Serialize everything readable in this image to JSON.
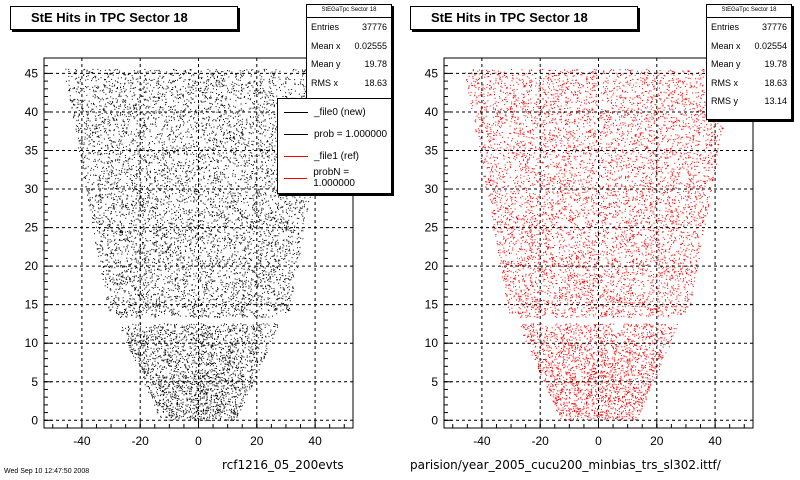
{
  "colors": {
    "new": "#000000",
    "ref": "#ff0000",
    "grid": "#000000"
  },
  "left_panel": {
    "title": "StE Hits in TPC Sector 18",
    "stats": {
      "name": "StEGaTpc Sector 18",
      "rows": [
        {
          "label": "Entries",
          "value": "37776"
        },
        {
          "label": "Mean x",
          "value": "0.02555"
        },
        {
          "label": "Mean y",
          "value": "19.78"
        },
        {
          "label": "RMS x",
          "value": "18.63"
        }
      ]
    },
    "legend": [
      {
        "label": "_file0 (new)",
        "color": "#000000"
      },
      {
        "label": "prob = 1.000000",
        "color": "#000000"
      },
      {
        "label": "_file1 (ref)",
        "color": "#ff0000"
      },
      {
        "label": "probN = 1.000000",
        "color": "#ff0000"
      }
    ],
    "footer": "rcf1216_05_200evts",
    "footer_small": "Wed Sep 10 12:47:50 2008"
  },
  "right_panel": {
    "title": "StE Hits in TPC Sector 18",
    "stats": {
      "name": "StEGaTpc Sector 18",
      "rows": [
        {
          "label": "Entries",
          "value": "37776"
        },
        {
          "label": "Mean x",
          "value": "0.02554"
        },
        {
          "label": "Mean y",
          "value": "19.78"
        },
        {
          "label": "RMS x",
          "value": "18.63"
        },
        {
          "label": "RMS y",
          "value": "13.14"
        }
      ]
    },
    "footer": "parision/year_2005_cucu200_minbias_trs_sl302.ittf/"
  },
  "chart_data": [
    {
      "type": "scatter",
      "title": "StE Hits in TPC Sector 18",
      "series": [
        {
          "name": "_file0 (new)",
          "color": "#000000"
        }
      ],
      "xlim": [
        -53,
        53
      ],
      "ylim": [
        -1,
        47
      ],
      "x_ticks": [
        -40,
        -20,
        0,
        20,
        40
      ],
      "y_ticks": [
        0,
        5,
        10,
        15,
        20,
        25,
        30,
        35,
        40,
        45
      ],
      "grid": true,
      "shape_halfwidth_at_y": [
        [
          0,
          13
        ],
        [
          12,
          27
        ],
        [
          13.5,
          27
        ],
        [
          14,
          31
        ],
        [
          45,
          46
        ]
      ],
      "gap_y": [
        12.6,
        13.4
      ],
      "entries": 37776
    },
    {
      "type": "scatter",
      "title": "StE Hits in TPC Sector 18",
      "series": [
        {
          "name": "_file1 (ref)",
          "color": "#ff0000"
        }
      ],
      "xlim": [
        -53,
        53
      ],
      "ylim": [
        -1,
        47
      ],
      "x_ticks": [
        -40,
        -20,
        0,
        20,
        40
      ],
      "y_ticks": [
        0,
        5,
        10,
        15,
        20,
        25,
        30,
        35,
        40,
        45
      ],
      "grid": true,
      "shape_halfwidth_at_y": [
        [
          0,
          13
        ],
        [
          12,
          27
        ],
        [
          13.5,
          27
        ],
        [
          14,
          31
        ],
        [
          45,
          46
        ]
      ],
      "gap_y": [
        12.6,
        13.4
      ],
      "entries": 37776
    }
  ]
}
